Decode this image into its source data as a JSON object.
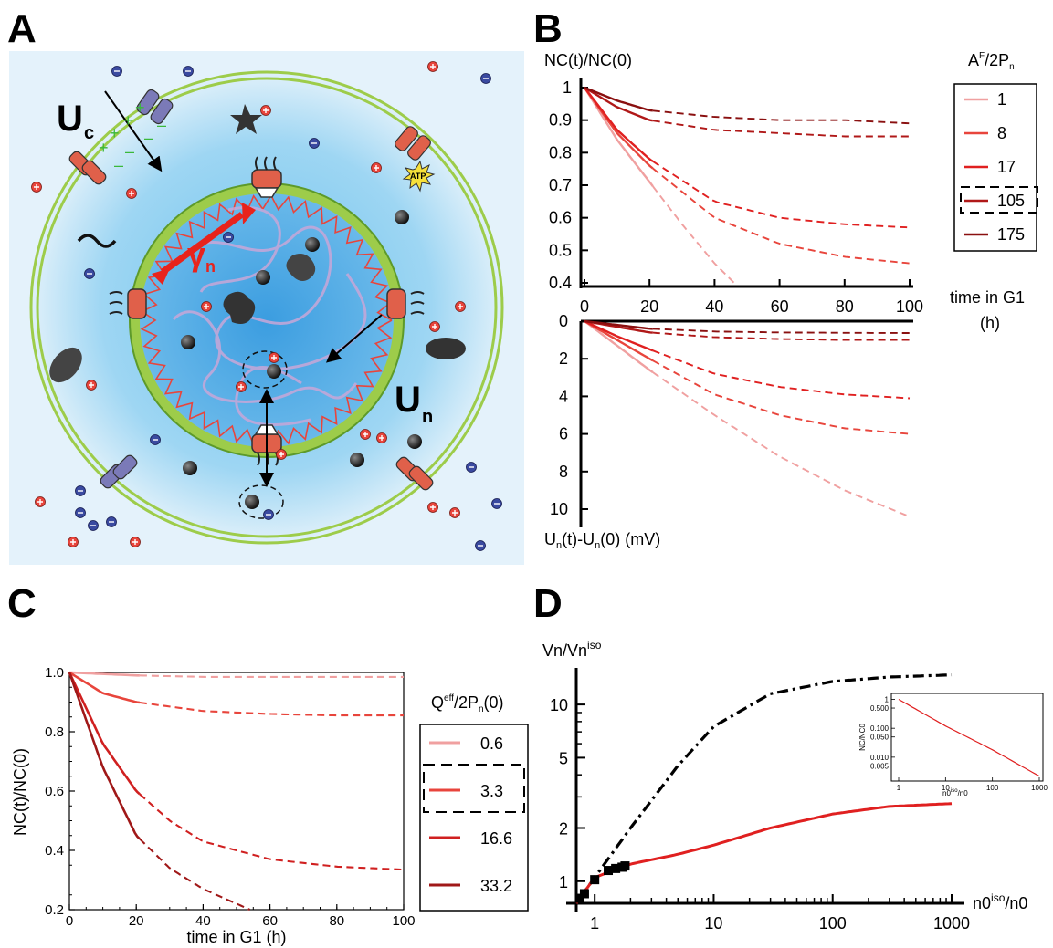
{
  "panels": {
    "a_letter": "A",
    "b_letter": "B",
    "c_letter": "C",
    "d_letter": "D"
  },
  "panel_a": {
    "label_uc": "U",
    "label_uc_sub": "c",
    "label_gamma": "γ",
    "label_gamma_sub": "n",
    "label_un": "U",
    "label_un_sub": "n",
    "atp": "ATP",
    "colors": {
      "cytoplasm": "#a8d8f0",
      "nucleus": "#4aa6e0",
      "membrane": "#9dcc4a",
      "lamina": "#e8453c",
      "cation": "#e8453c",
      "anion": "#3a4aa0"
    }
  },
  "panel_b": {
    "top_ylabel": "NC(t)/NC(0)",
    "bottom_ylabel_parts": [
      "U",
      "n",
      "(t)-U",
      "n",
      "(0) (mV)"
    ],
    "xlabel_line1": "time in G1",
    "xlabel_line2": "(h)",
    "legend_title_parts": [
      "A",
      "F",
      "/2P",
      "n"
    ],
    "top_yticks": [
      "1",
      "0.9",
      "0.8",
      "0.7",
      "0.6",
      "0.5",
      "0.4"
    ],
    "bottom_yticks": [
      "0",
      "2",
      "4",
      "6",
      "8",
      "10"
    ],
    "xticks": [
      "0",
      "20",
      "40",
      "60",
      "80",
      "100"
    ],
    "legend": [
      "1",
      "8",
      "17",
      "105",
      "175"
    ]
  },
  "panel_c": {
    "ylabel": "NC(t)/NC(0)",
    "xlabel": "time in G1 (h)",
    "legend_title_parts": [
      "Q",
      "eff",
      "/2P",
      "n",
      "(0)"
    ],
    "yticks": [
      "1.0",
      "0.8",
      "0.6",
      "0.4",
      "0.2"
    ],
    "xticks": [
      "0",
      "20",
      "40",
      "60",
      "80",
      "100"
    ],
    "legend": [
      "0.6",
      "3.3",
      "16.6",
      "33.2"
    ]
  },
  "panel_d": {
    "ylabel_parts": [
      "Vn/Vn",
      "iso"
    ],
    "xlabel_parts": [
      "n0",
      "iso",
      "/n0"
    ],
    "yticks": [
      "10",
      "5",
      "2",
      "1"
    ],
    "xticks": [
      "1",
      "10",
      "100",
      "1000"
    ],
    "inset_ylabel": "NC/NC0",
    "inset_xlabel_parts": [
      "n0",
      "iso",
      "/n0"
    ],
    "inset_yticks": [
      "1",
      "0.500",
      "0.100",
      "0.050",
      "0.010",
      "0.005"
    ],
    "inset_xticks": [
      "1",
      "10",
      "100",
      "1000"
    ]
  },
  "chart_data": [
    {
      "type": "line",
      "panel": "B-top",
      "xlabel": "time in G1 (h)",
      "ylabel": "NC(t)/NC(0)",
      "xlim": [
        0,
        100
      ],
      "ylim": [
        0.4,
        1.0
      ],
      "legend_title": "A^F/2P_n",
      "series": [
        {
          "name": "1",
          "color": "#f0a0a0",
          "x": [
            0,
            10,
            20,
            30,
            40,
            46
          ],
          "y": [
            1.0,
            0.84,
            0.71,
            0.58,
            0.46,
            0.4
          ]
        },
        {
          "name": "8",
          "color": "#e8453c",
          "x": [
            0,
            10,
            20,
            40,
            60,
            80,
            100
          ],
          "y": [
            1.0,
            0.86,
            0.76,
            0.6,
            0.52,
            0.48,
            0.46
          ]
        },
        {
          "name": "17",
          "color": "#e02020",
          "x": [
            0,
            10,
            20,
            40,
            60,
            80,
            100
          ],
          "y": [
            1.0,
            0.87,
            0.78,
            0.65,
            0.6,
            0.58,
            0.57
          ]
        },
        {
          "name": "105",
          "color": "#b01818",
          "x": [
            0,
            10,
            20,
            40,
            60,
            80,
            100
          ],
          "y": [
            1.0,
            0.94,
            0.9,
            0.87,
            0.86,
            0.85,
            0.85
          ]
        },
        {
          "name": "175",
          "color": "#8a1010",
          "x": [
            0,
            10,
            20,
            40,
            60,
            80,
            100
          ],
          "y": [
            1.0,
            0.96,
            0.93,
            0.91,
            0.9,
            0.9,
            0.89
          ]
        }
      ],
      "solid_until_x": 21
    },
    {
      "type": "line",
      "panel": "B-bottom",
      "xlabel": "time in G1 (h)",
      "ylabel": "U_n(t)-U_n(0) (mV)",
      "xlim": [
        0,
        100
      ],
      "ylim": [
        0,
        11
      ],
      "y_inverted": true,
      "series": [
        {
          "name": "1",
          "color": "#f0a0a0",
          "x": [
            0,
            10,
            20,
            40,
            60,
            80,
            100
          ],
          "y": [
            0,
            1.3,
            2.6,
            5.0,
            7.2,
            9.0,
            10.4
          ]
        },
        {
          "name": "8",
          "color": "#e8453c",
          "x": [
            0,
            10,
            20,
            40,
            60,
            80,
            100
          ],
          "y": [
            0,
            1.0,
            2.0,
            3.9,
            5.0,
            5.7,
            6.0
          ]
        },
        {
          "name": "17",
          "color": "#e02020",
          "x": [
            0,
            10,
            20,
            40,
            60,
            80,
            100
          ],
          "y": [
            0,
            0.8,
            1.5,
            2.8,
            3.5,
            3.9,
            4.1
          ]
        },
        {
          "name": "105",
          "color": "#b01818",
          "x": [
            0,
            10,
            20,
            40,
            60,
            80,
            100
          ],
          "y": [
            0,
            0.3,
            0.6,
            0.85,
            0.95,
            1.0,
            1.0
          ]
        },
        {
          "name": "175",
          "color": "#8a1010",
          "x": [
            0,
            10,
            20,
            40,
            60,
            80,
            100
          ],
          "y": [
            0,
            0.2,
            0.4,
            0.55,
            0.6,
            0.62,
            0.63
          ]
        }
      ],
      "solid_until_x": 21
    },
    {
      "type": "line",
      "panel": "C",
      "xlabel": "time in G1 (h)",
      "ylabel": "NC(t)/NC(0)",
      "xlim": [
        0,
        100
      ],
      "ylim": [
        0.2,
        1.0
      ],
      "legend_title": "Q^eff/2P_n(0)",
      "series": [
        {
          "name": "0.6",
          "color": "#f0a0a0",
          "x": [
            0,
            20,
            40,
            60,
            80,
            100
          ],
          "y": [
            1.0,
            0.99,
            0.985,
            0.985,
            0.985,
            0.985
          ]
        },
        {
          "name": "3.3",
          "color": "#e8453c",
          "x": [
            0,
            10,
            20,
            40,
            60,
            80,
            100
          ],
          "y": [
            1.0,
            0.93,
            0.9,
            0.87,
            0.86,
            0.855,
            0.855
          ]
        },
        {
          "name": "16.6",
          "color": "#d02020",
          "x": [
            0,
            10,
            20,
            30,
            40,
            60,
            80,
            100
          ],
          "y": [
            1.0,
            0.76,
            0.6,
            0.5,
            0.43,
            0.37,
            0.345,
            0.335
          ]
        },
        {
          "name": "33.2",
          "color": "#a01818",
          "x": [
            0,
            10,
            20,
            30,
            40,
            50,
            54
          ],
          "y": [
            1.0,
            0.68,
            0.45,
            0.34,
            0.27,
            0.22,
            0.2
          ]
        }
      ],
      "solid_until_x": 21
    },
    {
      "type": "line",
      "panel": "D",
      "xlabel": "n0^iso/n0",
      "ylabel": "Vn/Vn^iso",
      "x_scale": "log",
      "y_scale": "log",
      "xlim": [
        0.7,
        1000
      ],
      "ylim": [
        0.75,
        15
      ],
      "series": [
        {
          "name": "",
          "style": "dash-dot",
          "color": "#000000",
          "x": [
            0.7,
            1,
            2,
            5,
            10,
            30,
            100,
            300,
            1000
          ],
          "y": [
            0.75,
            1.05,
            2.0,
            4.5,
            7.5,
            11.5,
            13.5,
            14.3,
            14.7
          ]
        },
        {
          "name": "",
          "style": "solid",
          "color": "#e02020",
          "x": [
            0.7,
            1,
            2,
            5,
            10,
            30,
            100,
            300,
            1000
          ],
          "y": [
            0.75,
            1.05,
            1.25,
            1.42,
            1.6,
            2.0,
            2.4,
            2.65,
            2.75
          ]
        },
        {
          "name": "",
          "style": "markers",
          "color": "#000000",
          "x": [
            0.75,
            0.82,
            1.0,
            1.3,
            1.5,
            1.7,
            1.8
          ],
          "y": [
            0.8,
            0.85,
            1.02,
            1.15,
            1.18,
            1.2,
            1.22
          ]
        }
      ],
      "inset": {
        "type": "line",
        "xlabel": "n0^iso/n0",
        "ylabel": "NC/NC0",
        "x_scale": "log",
        "y_scale": "log",
        "xlim": [
          1,
          1000
        ],
        "ylim": [
          0.002,
          1.2
        ],
        "x": [
          1,
          10,
          100,
          1000
        ],
        "y": [
          1.0,
          0.12,
          0.018,
          0.0022
        ]
      }
    }
  ]
}
